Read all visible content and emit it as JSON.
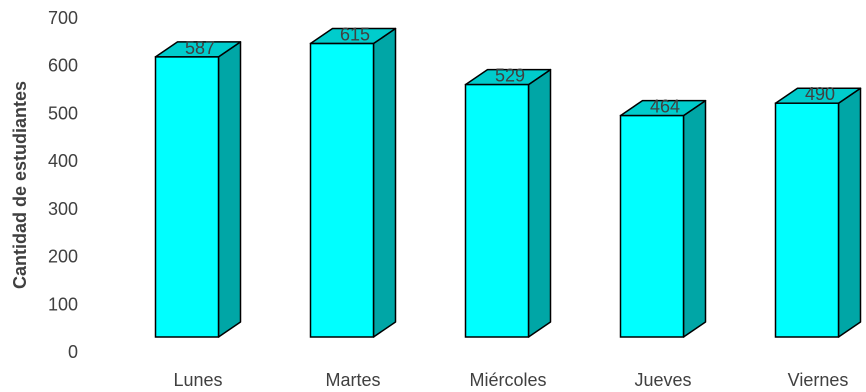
{
  "chart_data": {
    "type": "bar",
    "categories": [
      "Lunes",
      "Martes",
      "Miércoles",
      "Jueves",
      "Viernes"
    ],
    "series": [
      {
        "values": [
          587,
          615,
          529,
          464,
          490
        ]
      }
    ],
    "data_labels": [
      "587",
      "615",
      "529",
      "464",
      "490"
    ],
    "ylabel": "Cantidad de estudiantes",
    "ylim": [
      0,
      700
    ],
    "yticks": [
      0,
      100,
      200,
      300,
      400,
      500,
      600,
      700
    ],
    "grid": false,
    "legend": "none",
    "style": "3d-column",
    "colors": {
      "front": "#00FFFF",
      "top": "#00CCCC",
      "side": "#00A6A6",
      "edge": "#000000"
    }
  }
}
